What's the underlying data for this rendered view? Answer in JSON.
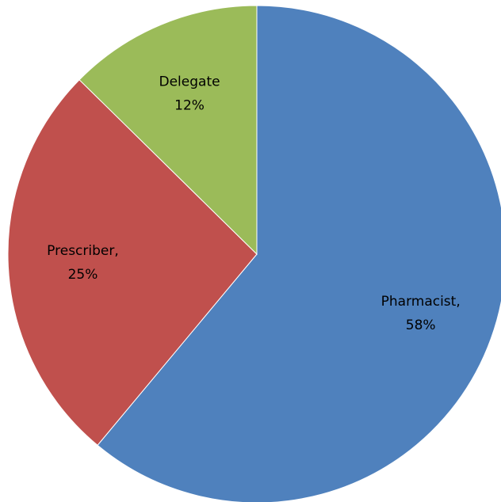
{
  "chart_data": {
    "type": "pie",
    "categories": [
      "Pharmacist,",
      "Prescriber,",
      "Delegate"
    ],
    "values": [
      58,
      25,
      12
    ],
    "value_labels": [
      "58%",
      "25%",
      "12%"
    ],
    "colors": [
      "#4f81bd",
      "#c0504d",
      "#9bbb59"
    ]
  }
}
